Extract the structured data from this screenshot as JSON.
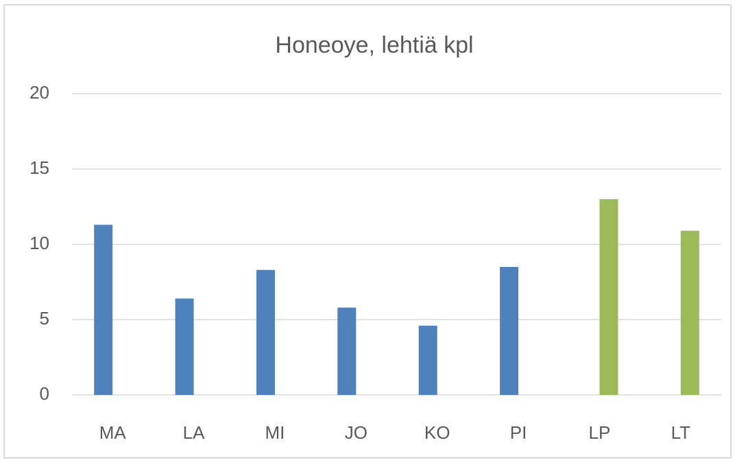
{
  "chart_data": {
    "type": "bar",
    "title": "Honeoye, lehtiä kpl",
    "categories": [
      "MA",
      "LA",
      "MI",
      "JO",
      "KO",
      "PI",
      "LP",
      "LT"
    ],
    "series": [
      {
        "color": "#4f81bd",
        "values": [
          11.3,
          6.4,
          8.3,
          5.8,
          4.6,
          8.5,
          null,
          null
        ]
      },
      {
        "color": "#9bbb59",
        "values": [
          null,
          null,
          null,
          null,
          null,
          null,
          13.0,
          10.9
        ]
      }
    ],
    "ylim": [
      0,
      20
    ],
    "yticks": [
      0,
      5,
      10,
      15,
      20
    ],
    "grid": true
  }
}
